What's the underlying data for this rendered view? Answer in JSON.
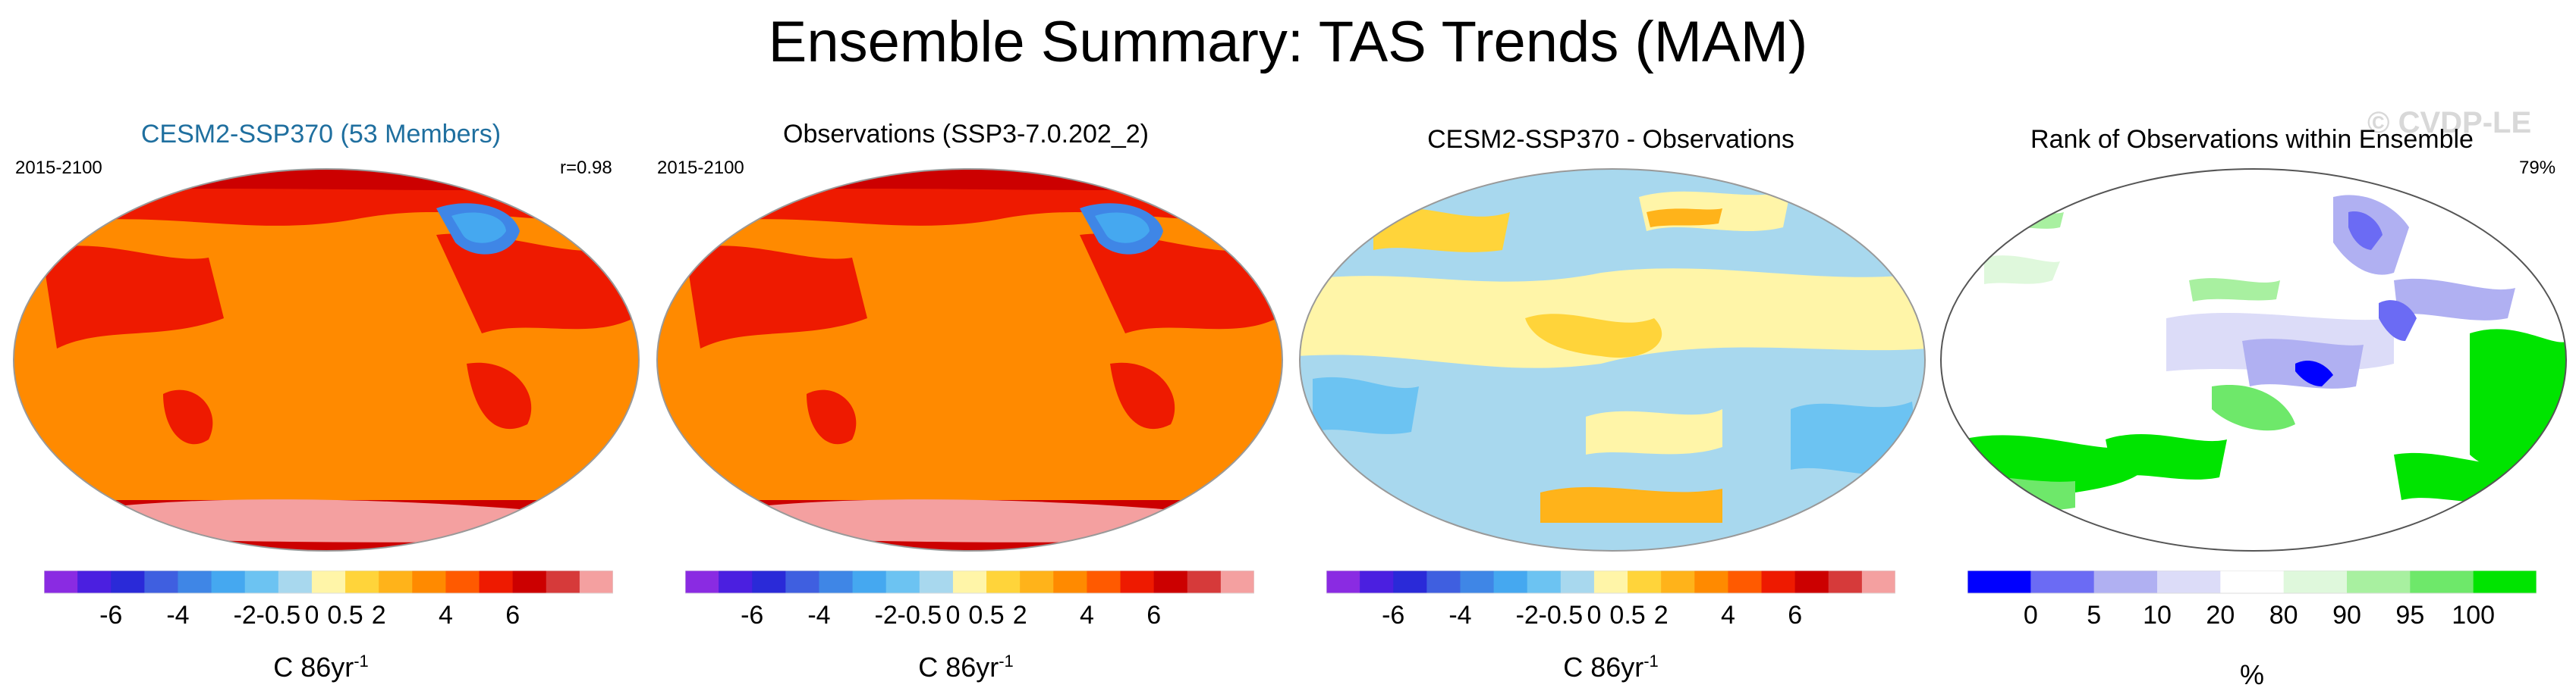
{
  "title": "Ensemble Summary: TAS Trends (MAM)",
  "watermark": "© CVDP-LE",
  "panels": [
    {
      "title": "CESM2-SSP370 (53 Members)",
      "left_label": "2015-2100",
      "right_label": "r=0.98",
      "map_style": "trend"
    },
    {
      "title": "Observations (SSP3-7.0.202_2)",
      "left_label": "2015-2100",
      "right_label": "",
      "map_style": "trend"
    },
    {
      "title": "CESM2-SSP370 - Observations",
      "left_label": "",
      "right_label": "",
      "map_style": "diff"
    },
    {
      "title": "Rank of Observations within Ensemble",
      "left_label": "",
      "right_label": "79%",
      "map_style": "rank"
    }
  ],
  "colorbars": {
    "trend": {
      "colors": [
        "#8a2be2",
        "#4b1fe0",
        "#2a2ad8",
        "#3f5fe0",
        "#3f86e6",
        "#45a8f0",
        "#6cc3f2",
        "#a8d8ee",
        "#fff5a8",
        "#ffd43a",
        "#ffb31a",
        "#ff8a00",
        "#ff5a00",
        "#ee1a00",
        "#cc0000",
        "#d63a3a",
        "#f4a0a0"
      ],
      "labels": [
        "-6",
        "-4",
        "-2",
        "-0.5",
        "0",
        "0.5",
        "2",
        "4",
        "6"
      ],
      "unit": "C 86yr",
      "unit_sup": "-1"
    },
    "rank": {
      "colors": [
        "#0000ff",
        "#6b6bf4",
        "#b0b0f2",
        "#dcdcf8",
        "#ffffff",
        "#dff8dc",
        "#a8f0a0",
        "#6ee86a",
        "#00e400"
      ],
      "labels": [
        "0",
        "5",
        "10",
        "20",
        "80",
        "90",
        "95",
        "100"
      ],
      "unit": "%"
    }
  }
}
